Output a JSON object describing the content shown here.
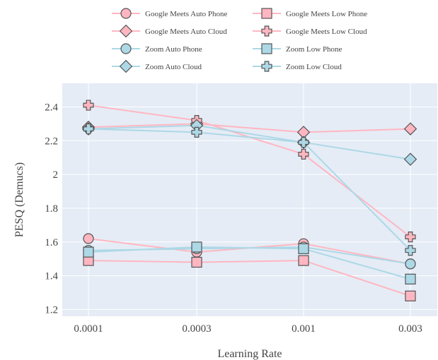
{
  "chart_data": {
    "type": "line",
    "title": "",
    "xlabel": "Learning Rate",
    "ylabel": "PESQ (Demucs)",
    "categories": [
      "0.0001",
      "0.0003",
      "0.001",
      "0.003"
    ],
    "ylim": [
      1.16,
      2.54
    ],
    "yticks": [
      1.2,
      1.4,
      1.6,
      1.8,
      2,
      2.2,
      2.4
    ],
    "ytick_labels": [
      "1.2",
      "1.4",
      "1.6",
      "1.8",
      "2",
      "2.2",
      "2.4"
    ],
    "grid": true,
    "background": "#e5ecf6",
    "legend_position": "top",
    "series": [
      {
        "name": "Google Meets Auto Phone",
        "marker": "circle",
        "color": "#ffb6c1",
        "values": [
          1.62,
          1.54,
          1.59,
          1.47
        ]
      },
      {
        "name": "Google Meets Low Phone",
        "marker": "square",
        "color": "#ffb6c1",
        "values": [
          1.49,
          1.48,
          1.49,
          1.28
        ]
      },
      {
        "name": "Google Meets Auto Cloud",
        "marker": "diamond",
        "color": "#ffb6c1",
        "values": [
          2.28,
          2.3,
          2.25,
          2.27
        ]
      },
      {
        "name": "Google Meets Low Cloud",
        "marker": "cross",
        "color": "#ffb6c1",
        "values": [
          2.41,
          2.32,
          2.12,
          1.63
        ]
      },
      {
        "name": "Zoom Auto Phone",
        "marker": "circle",
        "color": "#add8e6",
        "values": [
          1.55,
          1.56,
          1.57,
          1.47
        ]
      },
      {
        "name": "Zoom Low Phone",
        "marker": "square",
        "color": "#add8e6",
        "values": [
          1.54,
          1.57,
          1.56,
          1.38
        ]
      },
      {
        "name": "Zoom Auto Cloud",
        "marker": "diamond",
        "color": "#add8e6",
        "values": [
          2.27,
          2.29,
          2.19,
          2.09
        ]
      },
      {
        "name": "Zoom Low Cloud",
        "marker": "cross",
        "color": "#add8e6",
        "values": [
          2.27,
          2.25,
          2.19,
          1.55
        ]
      }
    ]
  }
}
